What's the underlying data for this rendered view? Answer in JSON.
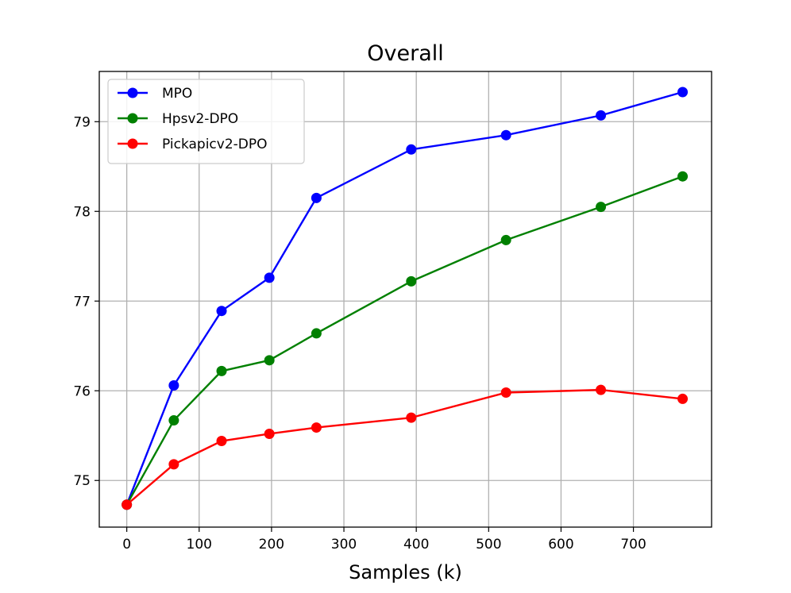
{
  "chart_data": {
    "type": "line",
    "title": "Overall",
    "xlabel": "Samples (k)",
    "ylabel": "",
    "xlim": [
      -38,
      808
    ],
    "ylim": [
      74.48,
      79.56
    ],
    "xticks": [
      0,
      100,
      200,
      300,
      400,
      500,
      600,
      700
    ],
    "yticks": [
      75,
      76,
      77,
      78,
      79
    ],
    "grid": true,
    "legend_position": "top-left",
    "x": [
      0,
      65,
      131,
      197,
      262,
      393,
      524,
      655,
      768
    ],
    "series": [
      {
        "name": "MPO",
        "color": "#0000ff",
        "values": [
          74.73,
          76.06,
          76.89,
          77.26,
          78.15,
          78.69,
          78.85,
          79.07,
          79.33
        ]
      },
      {
        "name": "Hpsv2-DPO",
        "color": "#008000",
        "values": [
          74.73,
          75.67,
          76.22,
          76.34,
          76.64,
          77.22,
          77.68,
          78.05,
          78.39
        ]
      },
      {
        "name": "Pickapicv2-DPO",
        "color": "#ff0000",
        "values": [
          74.73,
          75.18,
          75.44,
          75.52,
          75.59,
          75.7,
          75.98,
          76.01,
          75.91
        ]
      }
    ]
  }
}
